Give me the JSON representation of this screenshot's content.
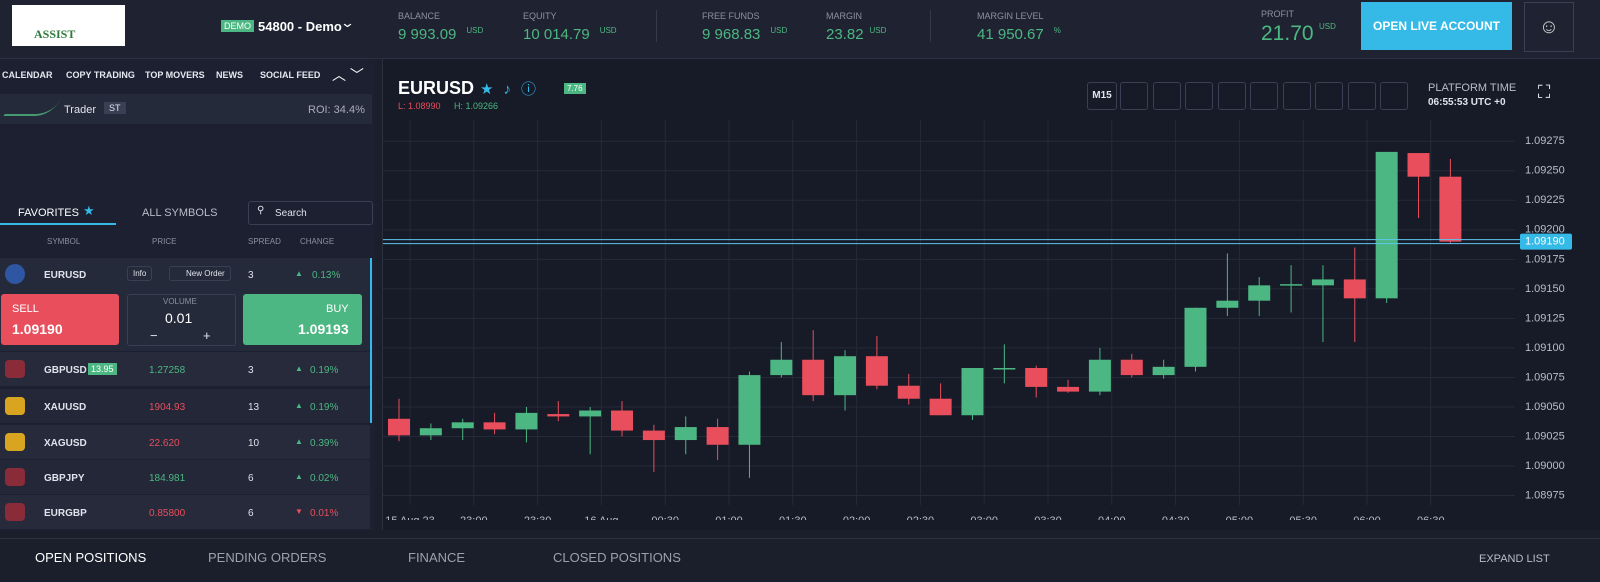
{
  "header": {
    "logo": "ASSIST",
    "account_badge": "DEMO",
    "account": "54800 - Demo",
    "stats": [
      {
        "label": "BALANCE",
        "value": "9 993.09",
        "unit": "USD"
      },
      {
        "label": "EQUITY",
        "value": "10 014.79",
        "unit": "USD"
      },
      {
        "label": "FREE FUNDS",
        "value": "9 968.83",
        "unit": "USD"
      },
      {
        "label": "MARGIN",
        "value": "23.82",
        "unit": "USD"
      },
      {
        "label": "MARGIN LEVEL",
        "value": "41 950.67",
        "unit": "%"
      },
      {
        "label": "PROFIT",
        "value": "21.70",
        "unit": "USD"
      }
    ],
    "button": "OPEN LIVE ACCOUNT"
  },
  "sidebar": {
    "tabs": [
      "CALENDAR",
      "COPY TRADING",
      "TOP MOVERS",
      "NEWS",
      "SOCIAL FEED"
    ],
    "trader": {
      "name": "Trader",
      "badge": "ST",
      "roi": "ROI: 34.4%"
    },
    "symbol_tabs": [
      "FAVORITES",
      "ALL SYMBOLS"
    ],
    "search": "Search",
    "columns": [
      "SYMBOL",
      "PRICE",
      "SPREAD",
      "CHANGE"
    ],
    "first_row": {
      "symbol": "EURUSD",
      "info": "Info",
      "new_order": "New Order",
      "spread": "3",
      "change": "0.13%"
    },
    "trade": {
      "sell": "SELL",
      "sell_price": "1.09190",
      "volume_label": "VOLUME",
      "volume": "0.01",
      "buy": "BUY",
      "buy_price": "1.09193"
    },
    "rows": [
      {
        "symbol": "GBPUSD",
        "badge": "13.95",
        "price": "1.27258",
        "price_color": "#4cb782",
        "spread": "3",
        "change": "0.19%",
        "change_color": "#4cb782"
      },
      {
        "symbol": "XAUUSD",
        "price": "1904.93",
        "price_color": "#e94e5c",
        "spread": "13",
        "change": "0.19%",
        "change_color": "#4cb782"
      },
      {
        "symbol": "XAGUSD",
        "price": "22.620",
        "price_color": "#e94e5c",
        "spread": "10",
        "change": "0.39%",
        "change_color": "#4cb782"
      },
      {
        "symbol": "GBPJPY",
        "price": "184.981",
        "price_color": "#4cb782",
        "spread": "6",
        "change": "0.02%",
        "change_color": "#4cb782"
      },
      {
        "symbol": "EURGBP",
        "price": "0.85800",
        "price_color": "#e94e5c",
        "spread": "6",
        "change": "0.01%",
        "change_color": "#e94e5c"
      }
    ]
  },
  "chart": {
    "symbol": "EURUSD",
    "spread_badge": "7.76",
    "low": "L: 1.08990",
    "high": "H: 1.09266",
    "timeframe": "M15",
    "platform_time_label": "PLATFORM TIME",
    "platform_time": "06:55:53 UTC +0"
  },
  "chart_data": {
    "type": "candlestick",
    "up_color": "#4cb782",
    "down_color": "#e94e5c",
    "categories": [
      "15 Aug 23",
      "23:00",
      "23:30",
      "16 Aug",
      "00:30",
      "01:00",
      "01:30",
      "02:00",
      "02:30",
      "03:00",
      "03:30",
      "04:00",
      "04:30",
      "05:00",
      "05:30",
      "06:00",
      "06:30"
    ],
    "open": [
      1.0904,
      1.09026,
      1.09032,
      1.09037,
      1.09031,
      1.09044,
      1.09042,
      1.09047,
      1.0903,
      1.09022,
      1.09033,
      1.09018,
      1.09077,
      1.0909,
      1.0906,
      1.09093,
      1.09068,
      1.09057,
      1.09043,
      1.09082,
      1.09083,
      1.09067,
      1.09063,
      1.0909,
      1.09077,
      1.09084,
      1.09134,
      1.0914,
      1.09153,
      1.09153,
      1.09158,
      1.09142,
      1.09265,
      1.09245
    ],
    "high": [
      1.09057,
      1.09036,
      1.0904,
      1.09045,
      1.0905,
      1.09055,
      1.0905,
      1.09055,
      1.09035,
      1.09042,
      1.0904,
      1.0908,
      1.09105,
      1.09115,
      1.09098,
      1.0911,
      1.09078,
      1.0907,
      1.09083,
      1.09103,
      1.09085,
      1.09073,
      1.091,
      1.09095,
      1.0909,
      1.09134,
      1.0918,
      1.0916,
      1.0917,
      1.0917,
      1.09185,
      1.09266,
      1.09265,
      1.0926
    ],
    "low": [
      1.09021,
      1.09022,
      1.09022,
      1.09027,
      1.0902,
      1.09038,
      1.0901,
      1.09025,
      1.08995,
      1.0901,
      1.09005,
      1.0899,
      1.09075,
      1.09055,
      1.09047,
      1.09065,
      1.09052,
      1.09043,
      1.09039,
      1.0907,
      1.09058,
      1.09062,
      1.0906,
      1.09075,
      1.09074,
      1.0908,
      1.09127,
      1.09127,
      1.0913,
      1.09105,
      1.09105,
      1.09138,
      1.0921,
      1.09188
    ],
    "close": [
      1.09026,
      1.09032,
      1.09037,
      1.09031,
      1.09045,
      1.09042,
      1.09047,
      1.0903,
      1.09022,
      1.09033,
      1.09018,
      1.09077,
      1.0909,
      1.0906,
      1.09093,
      1.09068,
      1.09057,
      1.09043,
      1.09083,
      1.09083,
      1.09067,
      1.09063,
      1.0909,
      1.09077,
      1.09084,
      1.09134,
      1.0914,
      1.09153,
      1.09154,
      1.09158,
      1.09142,
      1.09266,
      1.09245,
      1.0919
    ],
    "ylim": [
      1.08967,
      1.09293
    ],
    "yticks": [
      1.09275,
      {
        "value": 1.0925,
        "label": "1.09250"
      },
      1.09225,
      {
        "value": 1.092,
        "label": "1.09200"
      },
      1.09175,
      {
        "value": 1.0915,
        "label": "1.09150"
      },
      1.09125,
      {
        "value": 1.091,
        "label": "1.09100"
      },
      1.09075,
      {
        "value": 1.0905,
        "label": "1.09050"
      },
      1.09025,
      {
        "value": 1.09,
        "label": "1.09000"
      },
      1.08975
    ],
    "current_price": 1.0919,
    "current_price_label": "1.09190",
    "grid": true
  },
  "footer": {
    "tabs": [
      "OPEN POSITIONS",
      "PENDING ORDERS",
      "FINANCE",
      "CLOSED POSITIONS"
    ],
    "expand": "EXPAND LIST"
  }
}
